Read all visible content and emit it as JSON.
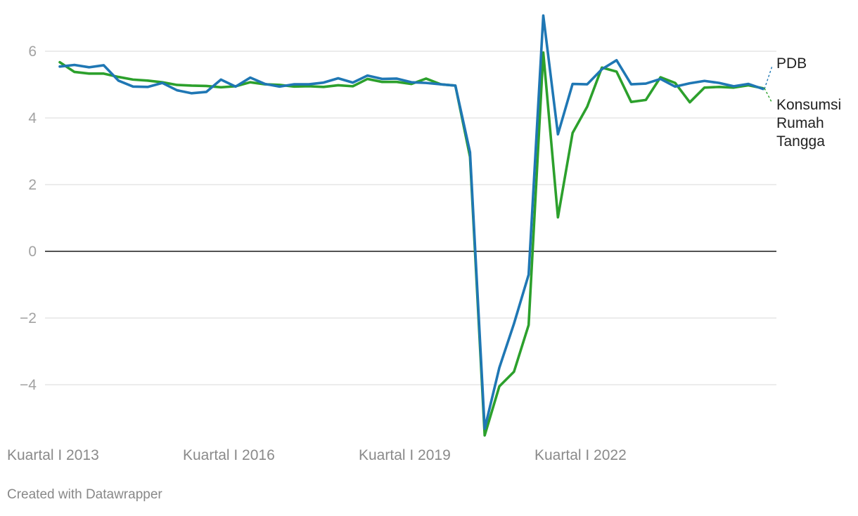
{
  "chart_data": {
    "type": "line",
    "x": [
      "Kuartal I 2013",
      "Kuartal II 2013",
      "Kuartal III 2013",
      "Kuartal IV 2013",
      "Kuartal I 2014",
      "Kuartal II 2014",
      "Kuartal III 2014",
      "Kuartal IV 2014",
      "Kuartal I 2015",
      "Kuartal II 2015",
      "Kuartal III 2015",
      "Kuartal IV 2015",
      "Kuartal I 2016",
      "Kuartal II 2016",
      "Kuartal III 2016",
      "Kuartal IV 2016",
      "Kuartal I 2017",
      "Kuartal II 2017",
      "Kuartal III 2017",
      "Kuartal IV 2017",
      "Kuartal I 2018",
      "Kuartal II 2018",
      "Kuartal III 2018",
      "Kuartal IV 2018",
      "Kuartal I 2019",
      "Kuartal II 2019",
      "Kuartal III 2019",
      "Kuartal IV 2019",
      "Kuartal I 2020",
      "Kuartal II 2020",
      "Kuartal III 2020",
      "Kuartal IV 2020",
      "Kuartal I 2021",
      "Kuartal II 2021",
      "Kuartal III 2021",
      "Kuartal IV 2021",
      "Kuartal I 2022",
      "Kuartal II 2022",
      "Kuartal III 2022",
      "Kuartal IV 2022",
      "Kuartal I 2023",
      "Kuartal II 2023",
      "Kuartal III 2023",
      "Kuartal IV 2023",
      "Kuartal I 2024",
      "Kuartal II 2024",
      "Kuartal III 2024",
      "Kuartal IV 2024",
      "Kuartal I 2025"
    ],
    "series": [
      {
        "name": "PDB",
        "color": "#1f77b4",
        "values": [
          5.54,
          5.59,
          5.52,
          5.58,
          5.12,
          4.94,
          4.93,
          5.05,
          4.83,
          4.74,
          4.78,
          5.15,
          4.94,
          5.21,
          5.02,
          4.94,
          5.01,
          5.01,
          5.06,
          5.19,
          5.06,
          5.27,
          5.17,
          5.18,
          5.07,
          5.05,
          5.01,
          4.97,
          2.97,
          -5.32,
          -3.49,
          -2.17,
          -0.7,
          7.07,
          3.51,
          5.02,
          5.01,
          5.46,
          5.73,
          5.01,
          5.03,
          5.17,
          4.94,
          5.04,
          5.11,
          5.05,
          4.95,
          5.02,
          4.87
        ]
      },
      {
        "name": "Konsumsi Rumah Tangga",
        "color": "#2ca02c",
        "values": [
          5.67,
          5.38,
          5.33,
          5.33,
          5.23,
          5.15,
          5.12,
          5.07,
          4.99,
          4.97,
          4.96,
          4.92,
          4.95,
          5.07,
          5.01,
          4.99,
          4.94,
          4.95,
          4.93,
          4.98,
          4.95,
          5.17,
          5.08,
          5.08,
          5.02,
          5.18,
          5.01,
          4.97,
          2.83,
          -5.52,
          -4.05,
          -3.61,
          -2.21,
          5.96,
          1.02,
          3.55,
          4.34,
          5.51,
          5.39,
          4.48,
          4.54,
          5.22,
          5.05,
          4.47,
          4.91,
          4.93,
          4.91,
          4.98,
          4.89
        ]
      }
    ],
    "y_ticks": [
      6,
      4,
      2,
      0,
      -2,
      -4
    ],
    "y_tick_labels": [
      "6",
      "4",
      "2",
      "0",
      "−2",
      "−4"
    ],
    "x_tick_labels": [
      {
        "index": 0,
        "label": "Kuartal I 2013"
      },
      {
        "index": 12,
        "label": "Kuartal I 2016"
      },
      {
        "index": 24,
        "label": "Kuartal I 2019"
      },
      {
        "index": 36,
        "label": "Kuartal I 2022"
      }
    ],
    "series_labels": [
      {
        "series": 0,
        "lines": [
          "PDB"
        ]
      },
      {
        "series": 1,
        "lines": [
          "Konsumsi",
          "Rumah",
          "Tangga"
        ]
      }
    ],
    "ylim": [
      -5.6,
      7.2
    ],
    "title": "",
    "xlabel": "",
    "ylabel": "",
    "grid": true,
    "legend": "right"
  },
  "footer": {
    "credit": "Created with Datawrapper"
  }
}
